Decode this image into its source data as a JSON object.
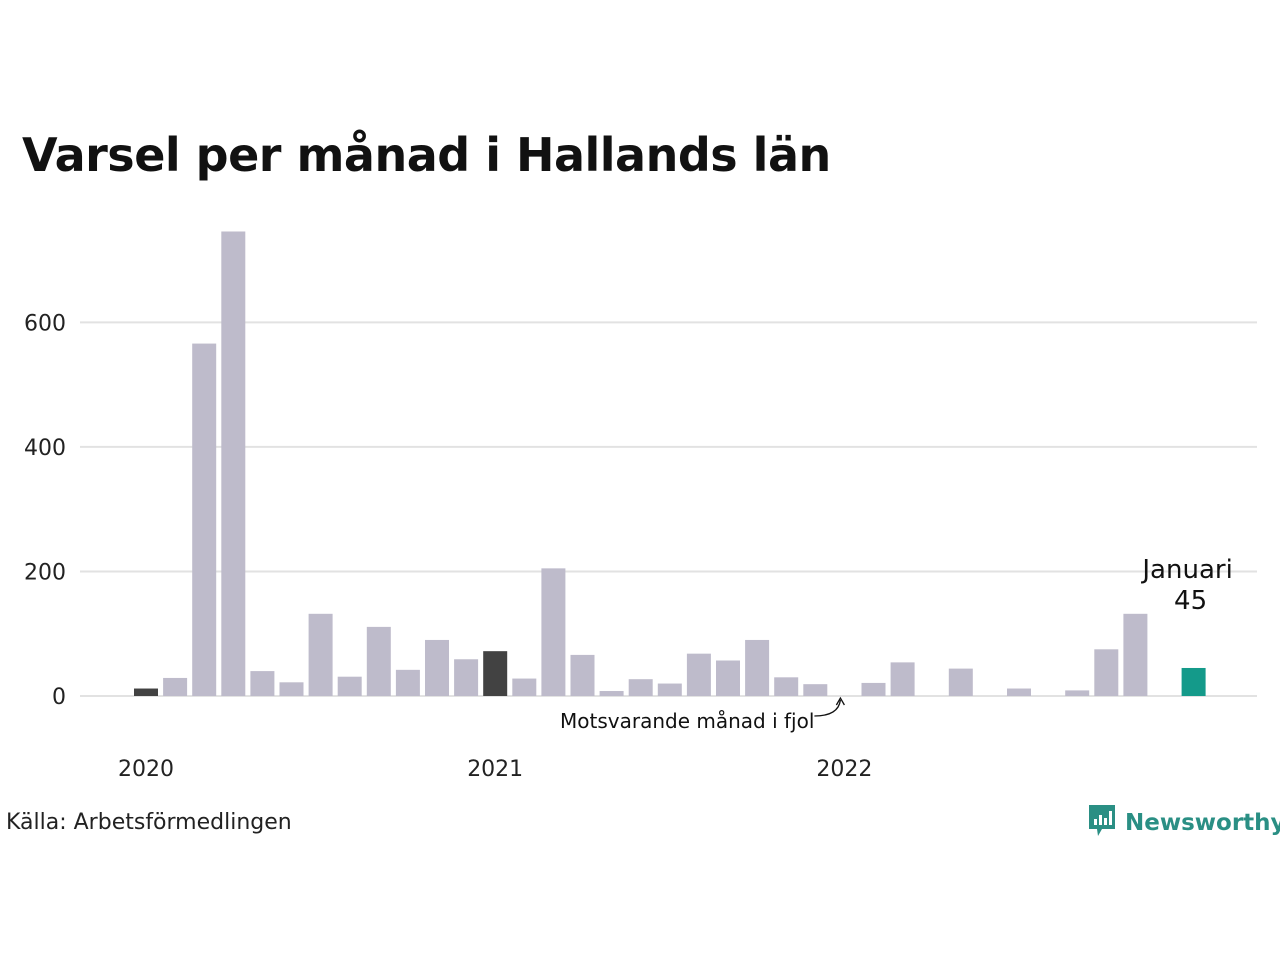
{
  "title": "Varsel per månad i Hallands län",
  "source": "Källa: Arbetsförmedlingen",
  "logo": {
    "text": "Newsworthy",
    "icon": "newsworthy-logo-icon",
    "color": "#2a8f84"
  },
  "colors": {
    "bar": "#bebbcb",
    "same_month": "#424242",
    "current": "#149a8a",
    "grid": "#e2e2e2"
  },
  "chart_data": {
    "type": "bar",
    "title": "Varsel per månad i Hallands län",
    "xlabel": "",
    "ylabel": "",
    "ylim": [
      0,
      750
    ],
    "yticks": [
      0,
      200,
      400,
      600
    ],
    "grid": true,
    "x_tick_labels": [
      {
        "label": "2020",
        "index": 0
      },
      {
        "label": "2021",
        "index": 12
      },
      {
        "label": "2022",
        "index": 24
      }
    ],
    "categories": [
      "2020-01",
      "2020-02",
      "2020-03",
      "2020-04",
      "2020-05",
      "2020-06",
      "2020-07",
      "2020-08",
      "2020-09",
      "2020-10",
      "2020-11",
      "2020-12",
      "2021-01",
      "2021-02",
      "2021-03",
      "2021-04",
      "2021-05",
      "2021-06",
      "2021-07",
      "2021-08",
      "2021-09",
      "2021-10",
      "2021-11",
      "2021-12",
      "2022-01",
      "2022-02",
      "2022-03",
      "2022-04",
      "2022-05",
      "2022-06",
      "2022-07",
      "2022-08",
      "2022-09",
      "2022-10",
      "2022-11",
      "2022-12",
      "2023-01"
    ],
    "values": [
      12,
      29,
      566,
      746,
      40,
      22,
      132,
      31,
      111,
      42,
      90,
      59,
      72,
      28,
      205,
      66,
      8,
      27,
      20,
      68,
      57,
      90,
      30,
      19,
      0,
      21,
      54,
      0,
      44,
      0,
      12,
      0,
      9,
      75,
      132,
      0,
      45
    ],
    "highlight_same_month": [
      "2020-01",
      "2021-01",
      "2022-01"
    ],
    "highlight_current": "2023-01",
    "annotations": {
      "current_label": "Januari",
      "current_value": "45",
      "same_month_note": "Motsvarande månad i fjol"
    }
  }
}
